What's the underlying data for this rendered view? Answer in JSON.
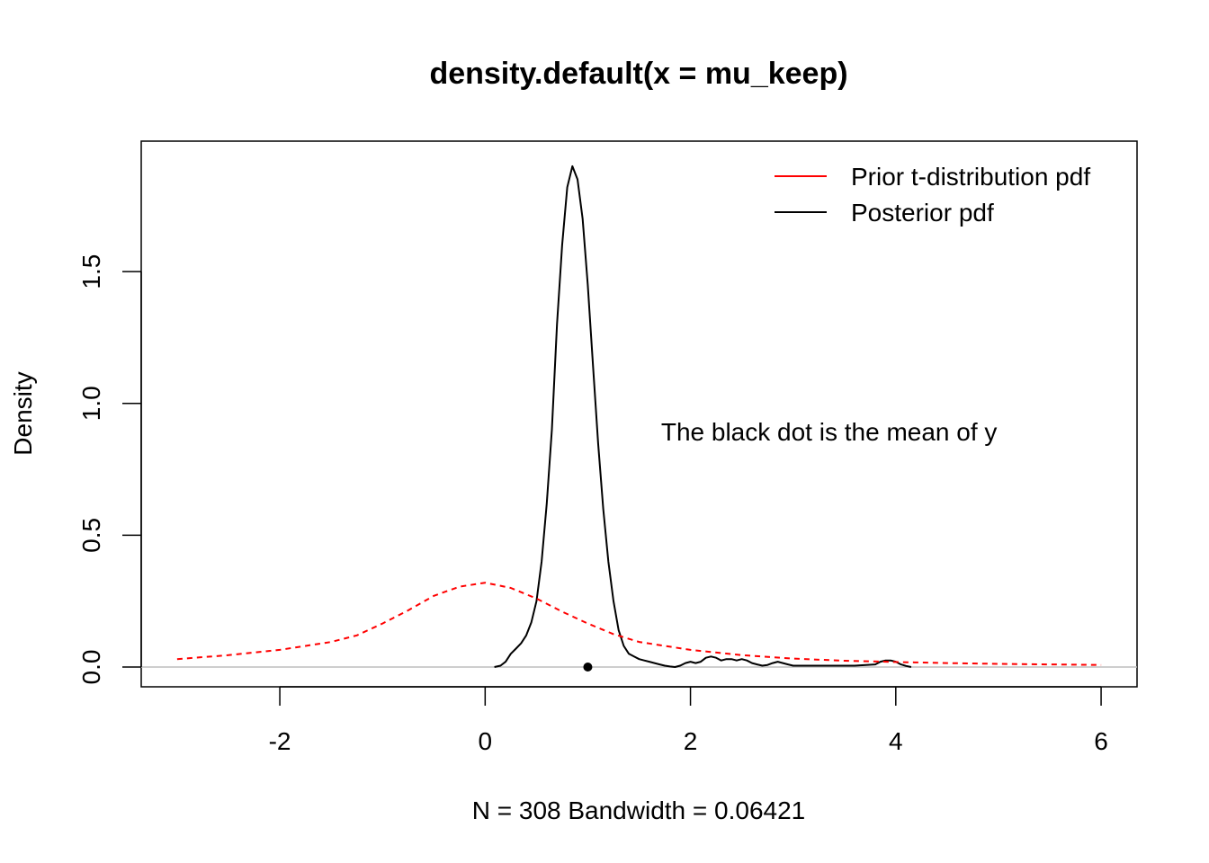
{
  "chart_data": {
    "type": "line",
    "title": "density.default(x = mu_keep)",
    "xlabel": "N = 308   Bandwidth = 0.06421",
    "ylabel": "Density",
    "xlim": [
      -3.35,
      6.35
    ],
    "ylim": [
      -0.075,
      1.995
    ],
    "x_ticks": [
      -2,
      0,
      2,
      4,
      6
    ],
    "x_tick_labels": [
      "-2",
      "0",
      "2",
      "4",
      "6"
    ],
    "y_ticks": [
      0.0,
      0.5,
      1.0,
      1.5
    ],
    "y_tick_labels": [
      "0.0",
      "0.5",
      "1.0",
      "1.5"
    ],
    "zero_line_color": "#bebebe",
    "legend_position": "top-right",
    "legend": [
      {
        "label": "Prior t-distribution pdf",
        "color": "#ff0000"
      },
      {
        "label": "Posterior pdf",
        "color": "#000000"
      }
    ],
    "series": [
      {
        "name": "Posterior pdf",
        "color": "#000000",
        "style": "solid",
        "x": [
          0.09,
          0.15,
          0.2,
          0.25,
          0.3,
          0.35,
          0.4,
          0.45,
          0.5,
          0.55,
          0.6,
          0.65,
          0.7,
          0.75,
          0.8,
          0.85,
          0.9,
          0.95,
          1.0,
          1.05,
          1.1,
          1.15,
          1.2,
          1.25,
          1.3,
          1.35,
          1.4,
          1.45,
          1.5,
          1.55,
          1.6,
          1.65,
          1.7,
          1.75,
          1.8,
          1.85,
          1.9,
          1.95,
          2.0,
          2.05,
          2.1,
          2.15,
          2.2,
          2.25,
          2.3,
          2.35,
          2.4,
          2.45,
          2.5,
          2.55,
          2.6,
          2.65,
          2.7,
          2.75,
          2.8,
          2.85,
          2.9,
          2.95,
          3.0,
          3.2,
          3.4,
          3.6,
          3.8,
          3.85,
          3.9,
          3.95,
          4.0,
          4.05,
          4.1,
          4.15
        ],
        "y": [
          0.0,
          0.005,
          0.02,
          0.05,
          0.07,
          0.09,
          0.12,
          0.17,
          0.25,
          0.4,
          0.62,
          0.9,
          1.3,
          1.6,
          1.82,
          1.9,
          1.85,
          1.7,
          1.45,
          1.15,
          0.85,
          0.6,
          0.4,
          0.25,
          0.14,
          0.08,
          0.05,
          0.04,
          0.03,
          0.025,
          0.02,
          0.015,
          0.01,
          0.005,
          0.002,
          0.0,
          0.005,
          0.015,
          0.02,
          0.015,
          0.02,
          0.035,
          0.04,
          0.035,
          0.025,
          0.03,
          0.03,
          0.025,
          0.03,
          0.025,
          0.015,
          0.01,
          0.005,
          0.008,
          0.015,
          0.02,
          0.015,
          0.01,
          0.005,
          0.005,
          0.005,
          0.005,
          0.01,
          0.02,
          0.025,
          0.025,
          0.02,
          0.01,
          0.004,
          0.0
        ]
      },
      {
        "name": "Prior t-distribution pdf",
        "color": "#ff0000",
        "style": "dashed",
        "x": [
          -3.0,
          -2.5,
          -2.0,
          -1.5,
          -1.25,
          -1.0,
          -0.75,
          -0.5,
          -0.25,
          0.0,
          0.25,
          0.5,
          0.75,
          1.0,
          1.25,
          1.5,
          2.0,
          2.5,
          3.0,
          3.5,
          4.0,
          4.5,
          5.0,
          5.5,
          6.0
        ],
        "y": [
          0.03,
          0.045,
          0.065,
          0.095,
          0.12,
          0.165,
          0.215,
          0.27,
          0.305,
          0.32,
          0.3,
          0.26,
          0.21,
          0.165,
          0.125,
          0.095,
          0.065,
          0.045,
          0.032,
          0.024,
          0.019,
          0.015,
          0.012,
          0.01,
          0.008
        ]
      }
    ],
    "points": [
      {
        "x": 1.0,
        "y": 0.0,
        "color": "#000000"
      }
    ],
    "annotations": [
      {
        "text": "The black dot is the mean of y",
        "x": 3.35,
        "y": 0.86
      }
    ]
  }
}
